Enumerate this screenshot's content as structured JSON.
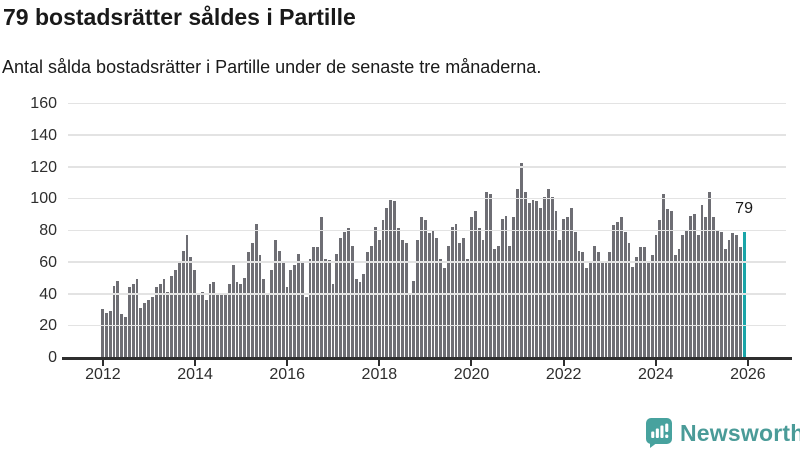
{
  "header": {
    "title": "79 bostadsrätter såldes i Partille",
    "subtitle": "Antal sålda bostadsrätter i Partille under de senaste tre månaderna."
  },
  "chart_data": {
    "type": "bar",
    "title": "79 bostadsrätter såldes i Partille",
    "subtitle": "Antal sålda bostadsrätter i Partille under de senaste tre månaderna.",
    "x_start": "2012-01",
    "x_interval": "month",
    "values": [
      30,
      28,
      29,
      45,
      48,
      27,
      25,
      44,
      46,
      49,
      31,
      34,
      36,
      38,
      44,
      46,
      49,
      41,
      51,
      55,
      60,
      67,
      77,
      63,
      55,
      39,
      41,
      36,
      46,
      47,
      40,
      39,
      40,
      46,
      58,
      47,
      46,
      50,
      66,
      72,
      84,
      64,
      49,
      40,
      55,
      74,
      67,
      59,
      44,
      55,
      58,
      65,
      60,
      38,
      62,
      69,
      69,
      88,
      62,
      61,
      46,
      65,
      75,
      79,
      81,
      70,
      49,
      47,
      52,
      66,
      70,
      82,
      74,
      86,
      94,
      99,
      98,
      81,
      74,
      72,
      40,
      48,
      74,
      88,
      86,
      78,
      80,
      75,
      62,
      56,
      70,
      82,
      84,
      72,
      75,
      62,
      88,
      92,
      81,
      74,
      104,
      103,
      68,
      70,
      87,
      89,
      70,
      88,
      106,
      122,
      104,
      97,
      99,
      98,
      94,
      101,
      106,
      101,
      92,
      74,
      87,
      88,
      94,
      79,
      67,
      66,
      56,
      59,
      70,
      66,
      60,
      59,
      66,
      83,
      85,
      88,
      79,
      72,
      57,
      63,
      69,
      69,
      59,
      64,
      77,
      86,
      103,
      93,
      92,
      64,
      68,
      77,
      80,
      89,
      90,
      77,
      96,
      88,
      104,
      88,
      80,
      79,
      68,
      74,
      78,
      77,
      69,
      79
    ],
    "highlight_last": true,
    "last_value_label": "79",
    "ylim": [
      0,
      160
    ],
    "yticks": [
      0,
      20,
      40,
      60,
      80,
      100,
      120,
      140,
      160
    ],
    "xticks": [
      2012,
      2014,
      2016,
      2018,
      2020,
      2022,
      2024,
      2026
    ],
    "grid": true,
    "legend": null,
    "bar_color": "#6e6e74",
    "highlight_color": "#1aa5a8",
    "grid_color": "#e3e3e3",
    "axis_color": "#2f2f2f"
  },
  "branding": {
    "logo_text": "Newsworthy",
    "logo_color": "#4a9b98",
    "logo_icon": "speech-bubble-bar-chart-exclamation"
  }
}
